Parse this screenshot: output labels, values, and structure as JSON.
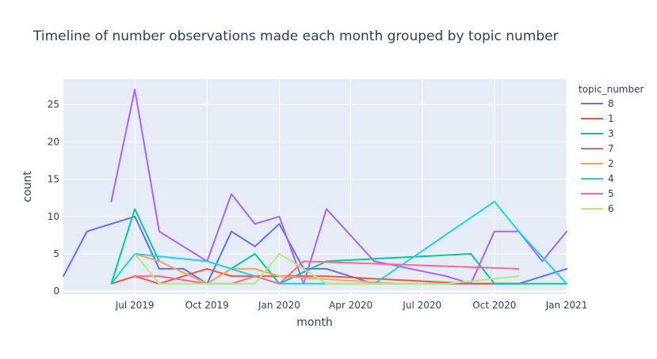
{
  "chart_data": {
    "type": "line",
    "title": "Timeline of number observations made each month grouped by topic number",
    "xlabel": "month",
    "ylabel": "count",
    "x_ticks": [
      "2019-07-01",
      "2019-10-01",
      "2020-01-01",
      "2020-04-01",
      "2020-07-01",
      "2020-10-01",
      "2021-01-01"
    ],
    "x_tick_labels": [
      "Jul 2019",
      "Oct 2019",
      "Jan 2020",
      "Apr 2020",
      "Jul 2020",
      "Oct 2020",
      "Jan 2021"
    ],
    "xlim": [
      "2019-04-01",
      "2021-01-01"
    ],
    "y_ticks": [
      0,
      5,
      10,
      15,
      20,
      25
    ],
    "ylim": [
      -0.4,
      28.4
    ],
    "grid": true,
    "legend": {
      "title": "topic_number",
      "position": "right"
    },
    "colors": {
      "background": "#E5ECF6",
      "grid": "#ffffff",
      "text": "#2a3f5f"
    },
    "series": [
      {
        "name": "8",
        "color": "#636EFA",
        "points": [
          [
            "2019-04-01",
            2
          ],
          [
            "2019-05-01",
            8
          ],
          [
            "2019-07-01",
            10
          ],
          [
            "2019-08-01",
            3
          ],
          [
            "2019-09-01",
            3
          ],
          [
            "2019-10-01",
            1
          ],
          [
            "2019-11-01",
            8
          ],
          [
            "2019-12-01",
            6
          ],
          [
            "2020-01-01",
            9
          ],
          [
            "2020-02-01",
            3
          ],
          [
            "2020-03-01",
            3
          ],
          [
            "2020-05-01",
            1
          ],
          [
            "2020-10-01",
            1
          ],
          [
            "2020-11-01",
            1
          ],
          [
            "2021-01-01",
            3
          ]
        ]
      },
      {
        "name": "1",
        "color": "#EF553B",
        "points": [
          [
            "2019-06-01",
            1
          ],
          [
            "2019-07-01",
            2
          ],
          [
            "2019-08-01",
            1
          ],
          [
            "2019-10-01",
            3
          ],
          [
            "2019-11-01",
            2
          ],
          [
            "2020-01-01",
            2
          ],
          [
            "2020-03-01",
            2
          ],
          [
            "2020-09-01",
            1
          ],
          [
            "2020-11-01",
            1
          ]
        ]
      },
      {
        "name": "3",
        "color": "#00CC96",
        "points": [
          [
            "2019-06-01",
            1
          ],
          [
            "2019-07-01",
            11
          ],
          [
            "2019-08-01",
            4
          ],
          [
            "2019-10-01",
            1
          ],
          [
            "2019-12-01",
            5
          ],
          [
            "2020-01-01",
            1
          ],
          [
            "2020-03-01",
            4
          ],
          [
            "2020-09-01",
            5
          ],
          [
            "2020-10-01",
            1
          ],
          [
            "2021-01-01",
            1
          ]
        ]
      },
      {
        "name": "7",
        "color": "#AB63FA",
        "points": [
          [
            "2019-06-01",
            12
          ],
          [
            "2019-07-01",
            27
          ],
          [
            "2019-08-01",
            8
          ],
          [
            "2019-10-01",
            4
          ],
          [
            "2019-11-01",
            13
          ],
          [
            "2019-12-01",
            9
          ],
          [
            "2020-01-01",
            10
          ],
          [
            "2020-02-01",
            1
          ],
          [
            "2020-03-01",
            11
          ],
          [
            "2020-05-01",
            4
          ],
          [
            "2020-08-01",
            2
          ],
          [
            "2020-09-01",
            1
          ],
          [
            "2020-10-01",
            8
          ],
          [
            "2020-11-01",
            8
          ],
          [
            "2020-12-01",
            4
          ],
          [
            "2021-01-01",
            8
          ]
        ]
      },
      {
        "name": "2",
        "color": "#FFA15A",
        "points": [
          [
            "2019-07-01",
            5
          ],
          [
            "2019-08-01",
            4
          ],
          [
            "2019-10-01",
            1
          ],
          [
            "2019-11-01",
            3
          ],
          [
            "2019-12-01",
            3
          ],
          [
            "2020-01-01",
            2
          ],
          [
            "2020-06-01",
            1
          ],
          [
            "2020-08-01",
            1
          ]
        ]
      },
      {
        "name": "4",
        "color": "#19D3F3",
        "points": [
          [
            "2019-06-01",
            1
          ],
          [
            "2019-07-01",
            5
          ],
          [
            "2019-10-01",
            4
          ],
          [
            "2020-01-01",
            1
          ],
          [
            "2020-05-01",
            1
          ],
          [
            "2020-10-01",
            12
          ],
          [
            "2020-11-01",
            8
          ],
          [
            "2021-01-01",
            1
          ]
        ]
      },
      {
        "name": "5",
        "color": "#FF6692",
        "points": [
          [
            "2019-07-01",
            2
          ],
          [
            "2019-08-01",
            2
          ],
          [
            "2019-10-01",
            1
          ],
          [
            "2019-11-01",
            1
          ],
          [
            "2019-12-01",
            2
          ],
          [
            "2020-01-01",
            1
          ],
          [
            "2020-02-01",
            4
          ],
          [
            "2020-11-01",
            3
          ]
        ]
      },
      {
        "name": "6",
        "color": "#B6E880",
        "points": [
          [
            "2019-07-01",
            5
          ],
          [
            "2019-08-01",
            1
          ],
          [
            "2019-10-01",
            1
          ],
          [
            "2019-12-01",
            1
          ],
          [
            "2020-01-01",
            5
          ],
          [
            "2020-02-01",
            3
          ],
          [
            "2020-03-01",
            1
          ],
          [
            "2020-04-01",
            1
          ],
          [
            "2020-08-01",
            1
          ],
          [
            "2020-11-01",
            2
          ]
        ]
      }
    ]
  }
}
